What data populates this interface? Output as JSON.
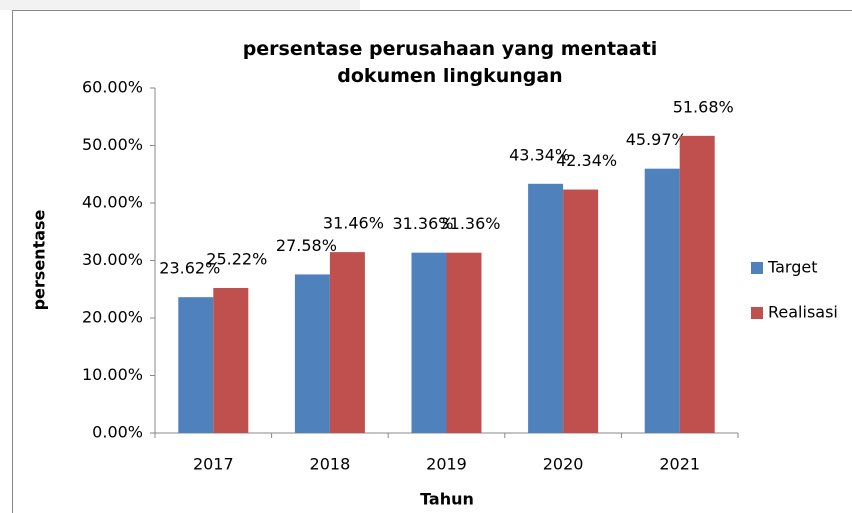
{
  "chart_data": {
    "type": "bar",
    "title": "persentase perusahaan yang mentaati dokumen lingkungan",
    "x_label": "Tahun",
    "y_label": "persentase",
    "categories": [
      "2017",
      "2018",
      "2019",
      "2020",
      "2021"
    ],
    "series": [
      {
        "name": "Target",
        "color": "#4f81bd",
        "values": [
          23.62,
          27.58,
          31.36,
          43.34,
          45.97
        ],
        "value_labels": [
          "23.62%",
          "27.58%",
          "31.36%",
          "43.34%",
          "45.97%"
        ]
      },
      {
        "name": "Realisasi",
        "color": "#c0504d",
        "values": [
          25.22,
          31.46,
          31.36,
          42.34,
          51.68
        ],
        "value_labels": [
          "25.22%",
          "31.46%",
          "31.36%",
          "42.34%",
          "51.68%"
        ]
      }
    ],
    "ylim": [
      0,
      60
    ],
    "yticks": [
      {
        "value": 0,
        "label": "0.00%"
      },
      {
        "value": 10,
        "label": "10.00%"
      },
      {
        "value": 20,
        "label": "20.00%"
      },
      {
        "value": 30,
        "label": "30.00%"
      },
      {
        "value": 40,
        "label": "40.00%"
      },
      {
        "value": 50,
        "label": "50.00%"
      },
      {
        "value": 60,
        "label": "60.00%"
      }
    ],
    "grid": false,
    "legend": "right"
  }
}
